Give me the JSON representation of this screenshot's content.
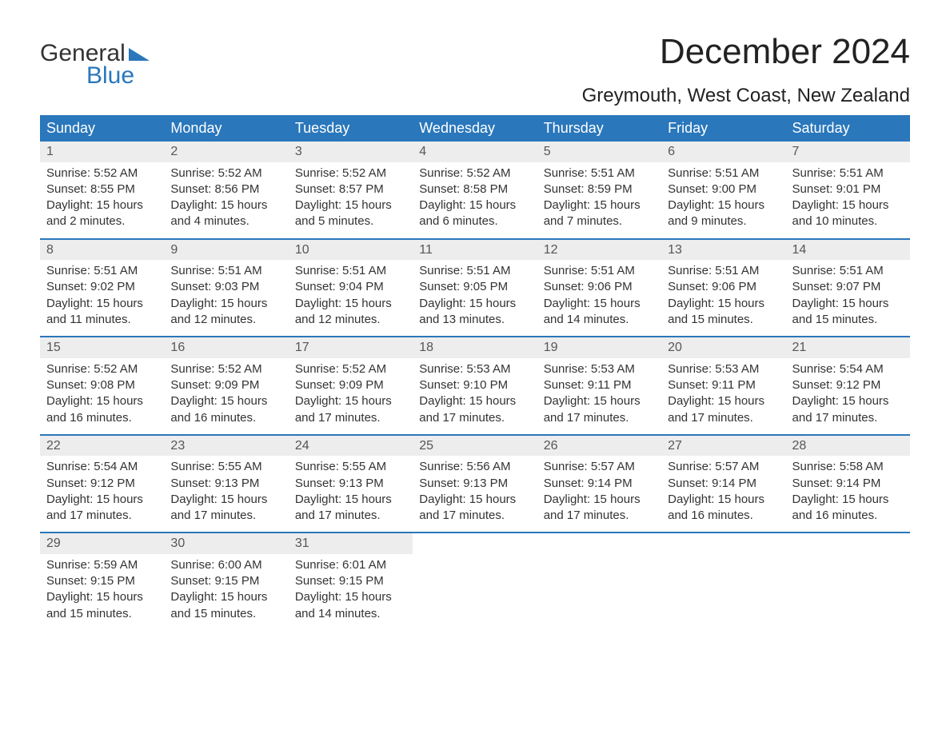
{
  "logo": {
    "text_top": "General",
    "text_bottom": "Blue",
    "accent_color": "#2a77bb"
  },
  "title": "December 2024",
  "location": "Greymouth, West Coast, New Zealand",
  "colors": {
    "header_bg": "#2a77bb",
    "header_text": "#ffffff",
    "date_strip_bg": "#ededed",
    "week_divider": "#2a77bb",
    "body_text": "#333333",
    "background": "#ffffff"
  },
  "day_names": [
    "Sunday",
    "Monday",
    "Tuesday",
    "Wednesday",
    "Thursday",
    "Friday",
    "Saturday"
  ],
  "weeks": [
    [
      {
        "date": "1",
        "sunrise": "Sunrise: 5:52 AM",
        "sunset": "Sunset: 8:55 PM",
        "daylight1": "Daylight: 15 hours",
        "daylight2": "and 2 minutes."
      },
      {
        "date": "2",
        "sunrise": "Sunrise: 5:52 AM",
        "sunset": "Sunset: 8:56 PM",
        "daylight1": "Daylight: 15 hours",
        "daylight2": "and 4 minutes."
      },
      {
        "date": "3",
        "sunrise": "Sunrise: 5:52 AM",
        "sunset": "Sunset: 8:57 PM",
        "daylight1": "Daylight: 15 hours",
        "daylight2": "and 5 minutes."
      },
      {
        "date": "4",
        "sunrise": "Sunrise: 5:52 AM",
        "sunset": "Sunset: 8:58 PM",
        "daylight1": "Daylight: 15 hours",
        "daylight2": "and 6 minutes."
      },
      {
        "date": "5",
        "sunrise": "Sunrise: 5:51 AM",
        "sunset": "Sunset: 8:59 PM",
        "daylight1": "Daylight: 15 hours",
        "daylight2": "and 7 minutes."
      },
      {
        "date": "6",
        "sunrise": "Sunrise: 5:51 AM",
        "sunset": "Sunset: 9:00 PM",
        "daylight1": "Daylight: 15 hours",
        "daylight2": "and 9 minutes."
      },
      {
        "date": "7",
        "sunrise": "Sunrise: 5:51 AM",
        "sunset": "Sunset: 9:01 PM",
        "daylight1": "Daylight: 15 hours",
        "daylight2": "and 10 minutes."
      }
    ],
    [
      {
        "date": "8",
        "sunrise": "Sunrise: 5:51 AM",
        "sunset": "Sunset: 9:02 PM",
        "daylight1": "Daylight: 15 hours",
        "daylight2": "and 11 minutes."
      },
      {
        "date": "9",
        "sunrise": "Sunrise: 5:51 AM",
        "sunset": "Sunset: 9:03 PM",
        "daylight1": "Daylight: 15 hours",
        "daylight2": "and 12 minutes."
      },
      {
        "date": "10",
        "sunrise": "Sunrise: 5:51 AM",
        "sunset": "Sunset: 9:04 PM",
        "daylight1": "Daylight: 15 hours",
        "daylight2": "and 12 minutes."
      },
      {
        "date": "11",
        "sunrise": "Sunrise: 5:51 AM",
        "sunset": "Sunset: 9:05 PM",
        "daylight1": "Daylight: 15 hours",
        "daylight2": "and 13 minutes."
      },
      {
        "date": "12",
        "sunrise": "Sunrise: 5:51 AM",
        "sunset": "Sunset: 9:06 PM",
        "daylight1": "Daylight: 15 hours",
        "daylight2": "and 14 minutes."
      },
      {
        "date": "13",
        "sunrise": "Sunrise: 5:51 AM",
        "sunset": "Sunset: 9:06 PM",
        "daylight1": "Daylight: 15 hours",
        "daylight2": "and 15 minutes."
      },
      {
        "date": "14",
        "sunrise": "Sunrise: 5:51 AM",
        "sunset": "Sunset: 9:07 PM",
        "daylight1": "Daylight: 15 hours",
        "daylight2": "and 15 minutes."
      }
    ],
    [
      {
        "date": "15",
        "sunrise": "Sunrise: 5:52 AM",
        "sunset": "Sunset: 9:08 PM",
        "daylight1": "Daylight: 15 hours",
        "daylight2": "and 16 minutes."
      },
      {
        "date": "16",
        "sunrise": "Sunrise: 5:52 AM",
        "sunset": "Sunset: 9:09 PM",
        "daylight1": "Daylight: 15 hours",
        "daylight2": "and 16 minutes."
      },
      {
        "date": "17",
        "sunrise": "Sunrise: 5:52 AM",
        "sunset": "Sunset: 9:09 PM",
        "daylight1": "Daylight: 15 hours",
        "daylight2": "and 17 minutes."
      },
      {
        "date": "18",
        "sunrise": "Sunrise: 5:53 AM",
        "sunset": "Sunset: 9:10 PM",
        "daylight1": "Daylight: 15 hours",
        "daylight2": "and 17 minutes."
      },
      {
        "date": "19",
        "sunrise": "Sunrise: 5:53 AM",
        "sunset": "Sunset: 9:11 PM",
        "daylight1": "Daylight: 15 hours",
        "daylight2": "and 17 minutes."
      },
      {
        "date": "20",
        "sunrise": "Sunrise: 5:53 AM",
        "sunset": "Sunset: 9:11 PM",
        "daylight1": "Daylight: 15 hours",
        "daylight2": "and 17 minutes."
      },
      {
        "date": "21",
        "sunrise": "Sunrise: 5:54 AM",
        "sunset": "Sunset: 9:12 PM",
        "daylight1": "Daylight: 15 hours",
        "daylight2": "and 17 minutes."
      }
    ],
    [
      {
        "date": "22",
        "sunrise": "Sunrise: 5:54 AM",
        "sunset": "Sunset: 9:12 PM",
        "daylight1": "Daylight: 15 hours",
        "daylight2": "and 17 minutes."
      },
      {
        "date": "23",
        "sunrise": "Sunrise: 5:55 AM",
        "sunset": "Sunset: 9:13 PM",
        "daylight1": "Daylight: 15 hours",
        "daylight2": "and 17 minutes."
      },
      {
        "date": "24",
        "sunrise": "Sunrise: 5:55 AM",
        "sunset": "Sunset: 9:13 PM",
        "daylight1": "Daylight: 15 hours",
        "daylight2": "and 17 minutes."
      },
      {
        "date": "25",
        "sunrise": "Sunrise: 5:56 AM",
        "sunset": "Sunset: 9:13 PM",
        "daylight1": "Daylight: 15 hours",
        "daylight2": "and 17 minutes."
      },
      {
        "date": "26",
        "sunrise": "Sunrise: 5:57 AM",
        "sunset": "Sunset: 9:14 PM",
        "daylight1": "Daylight: 15 hours",
        "daylight2": "and 17 minutes."
      },
      {
        "date": "27",
        "sunrise": "Sunrise: 5:57 AM",
        "sunset": "Sunset: 9:14 PM",
        "daylight1": "Daylight: 15 hours",
        "daylight2": "and 16 minutes."
      },
      {
        "date": "28",
        "sunrise": "Sunrise: 5:58 AM",
        "sunset": "Sunset: 9:14 PM",
        "daylight1": "Daylight: 15 hours",
        "daylight2": "and 16 minutes."
      }
    ],
    [
      {
        "date": "29",
        "sunrise": "Sunrise: 5:59 AM",
        "sunset": "Sunset: 9:15 PM",
        "daylight1": "Daylight: 15 hours",
        "daylight2": "and 15 minutes."
      },
      {
        "date": "30",
        "sunrise": "Sunrise: 6:00 AM",
        "sunset": "Sunset: 9:15 PM",
        "daylight1": "Daylight: 15 hours",
        "daylight2": "and 15 minutes."
      },
      {
        "date": "31",
        "sunrise": "Sunrise: 6:01 AM",
        "sunset": "Sunset: 9:15 PM",
        "daylight1": "Daylight: 15 hours",
        "daylight2": "and 14 minutes."
      },
      null,
      null,
      null,
      null
    ]
  ]
}
